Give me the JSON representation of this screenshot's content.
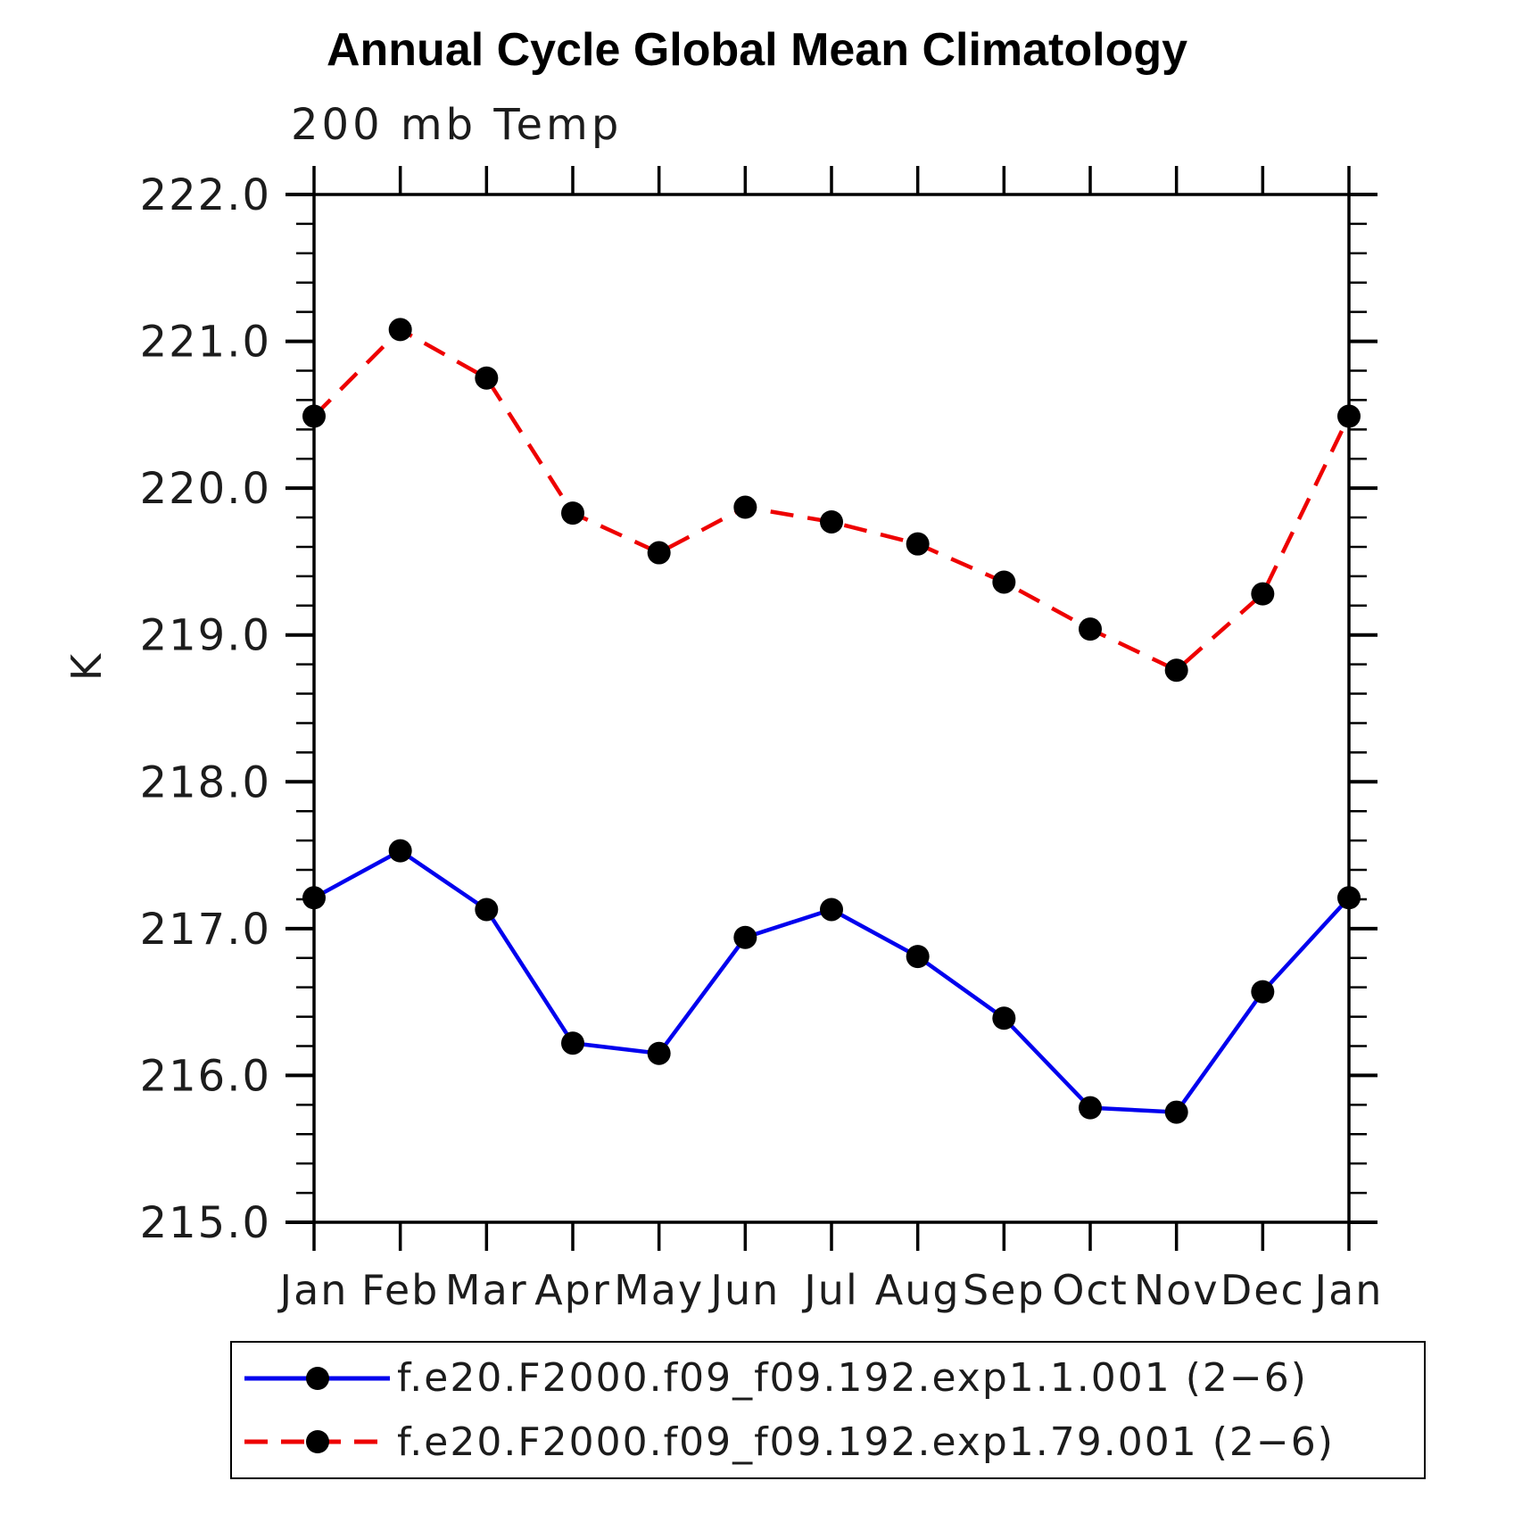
{
  "chart_data": {
    "type": "line",
    "title": "Annual Cycle Global Mean Climatology",
    "subtitle": "200 mb Temp",
    "ylabel": "K",
    "ylim": [
      215.0,
      222.0
    ],
    "y_major_step": 1.0,
    "y_minor_step": 0.2,
    "y_tick_labels": [
      "215.0",
      "216.0",
      "217.0",
      "218.0",
      "219.0",
      "220.0",
      "221.0",
      "222.0"
    ],
    "categories": [
      "Jan",
      "Feb",
      "Mar",
      "Apr",
      "May",
      "Jun",
      "Jul",
      "Aug",
      "Sep",
      "Oct",
      "Nov",
      "Dec",
      "Jan"
    ],
    "grid": false,
    "legend_position": "bottom",
    "marker_color": "#000000",
    "axis_color": "#000000",
    "series": [
      {
        "name": "exp1.1.001",
        "label": "f.e20.F2000.f09_f09.192.exp1.1.001 (2−6)",
        "color": "#0000ee",
        "style": "solid",
        "marker": "circle",
        "values": [
          217.21,
          217.53,
          217.13,
          216.22,
          216.15,
          216.94,
          217.13,
          216.81,
          216.39,
          215.78,
          215.75,
          216.57,
          217.21
        ]
      },
      {
        "name": "exp1.79.001",
        "label": "f.e20.F2000.f09_f09.192.exp1.79.001 (2−6)",
        "color": "#ee0000",
        "style": "dashed",
        "marker": "circle",
        "values": [
          220.49,
          221.08,
          220.75,
          219.83,
          219.56,
          219.87,
          219.77,
          219.62,
          219.36,
          219.04,
          218.76,
          219.28,
          220.49
        ]
      }
    ]
  }
}
